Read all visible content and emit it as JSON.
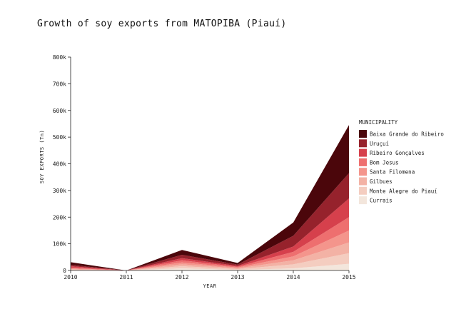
{
  "chart_data": {
    "type": "area",
    "stacked": true,
    "title": "Growth of soy exports from MATOPIBA (Piauí)",
    "xlabel": "YEAR",
    "ylabel": "SOY EXPORTS (Tn)",
    "x": [
      2010,
      2011,
      2012,
      2013,
      2014,
      2015
    ],
    "x_tick_labels": [
      "2010",
      "2011",
      "2012",
      "2013",
      "2014",
      "2015"
    ],
    "ylim": [
      0,
      800000
    ],
    "y_ticks": [
      0,
      100000,
      200000,
      300000,
      400000,
      500000,
      600000,
      700000,
      800000
    ],
    "y_tick_labels": [
      "0",
      "100k",
      "200k",
      "300k",
      "400k",
      "500k",
      "600k",
      "700k",
      "800k"
    ],
    "grid": false,
    "legend": {
      "title": "MUNICIPALITY",
      "placement": "right"
    },
    "series": [
      {
        "name": "Currais",
        "color": "#f3e6dc",
        "values": [
          1000,
          0,
          8000,
          2000,
          8000,
          25000
        ]
      },
      {
        "name": "Monte Alegre do Piauí",
        "color": "#f4cdc0",
        "values": [
          2000,
          0,
          8000,
          3000,
          15000,
          40000
        ]
      },
      {
        "name": "Gilbues",
        "color": "#f3b2a5",
        "values": [
          2000,
          0,
          7000,
          3000,
          15000,
          40000
        ]
      },
      {
        "name": "Santa Filomena",
        "color": "#f4958c",
        "values": [
          3000,
          0,
          7000,
          3000,
          15000,
          45000
        ]
      },
      {
        "name": "Bom Jesus",
        "color": "#ee6f6f",
        "values": [
          3000,
          0,
          8000,
          3000,
          17000,
          50000
        ]
      },
      {
        "name": "Ribeiro Gonçalves",
        "color": "#d6404c",
        "values": [
          5000,
          0,
          8000,
          3000,
          20000,
          70000
        ]
      },
      {
        "name": "Uruçuí",
        "color": "#96222c",
        "values": [
          5000,
          0,
          13000,
          5000,
          40000,
          95000
        ]
      },
      {
        "name": "Baixa Grande do Ribeiro",
        "color": "#4b060b",
        "values": [
          10000,
          0,
          18000,
          6000,
          50000,
          180000
        ]
      }
    ]
  }
}
